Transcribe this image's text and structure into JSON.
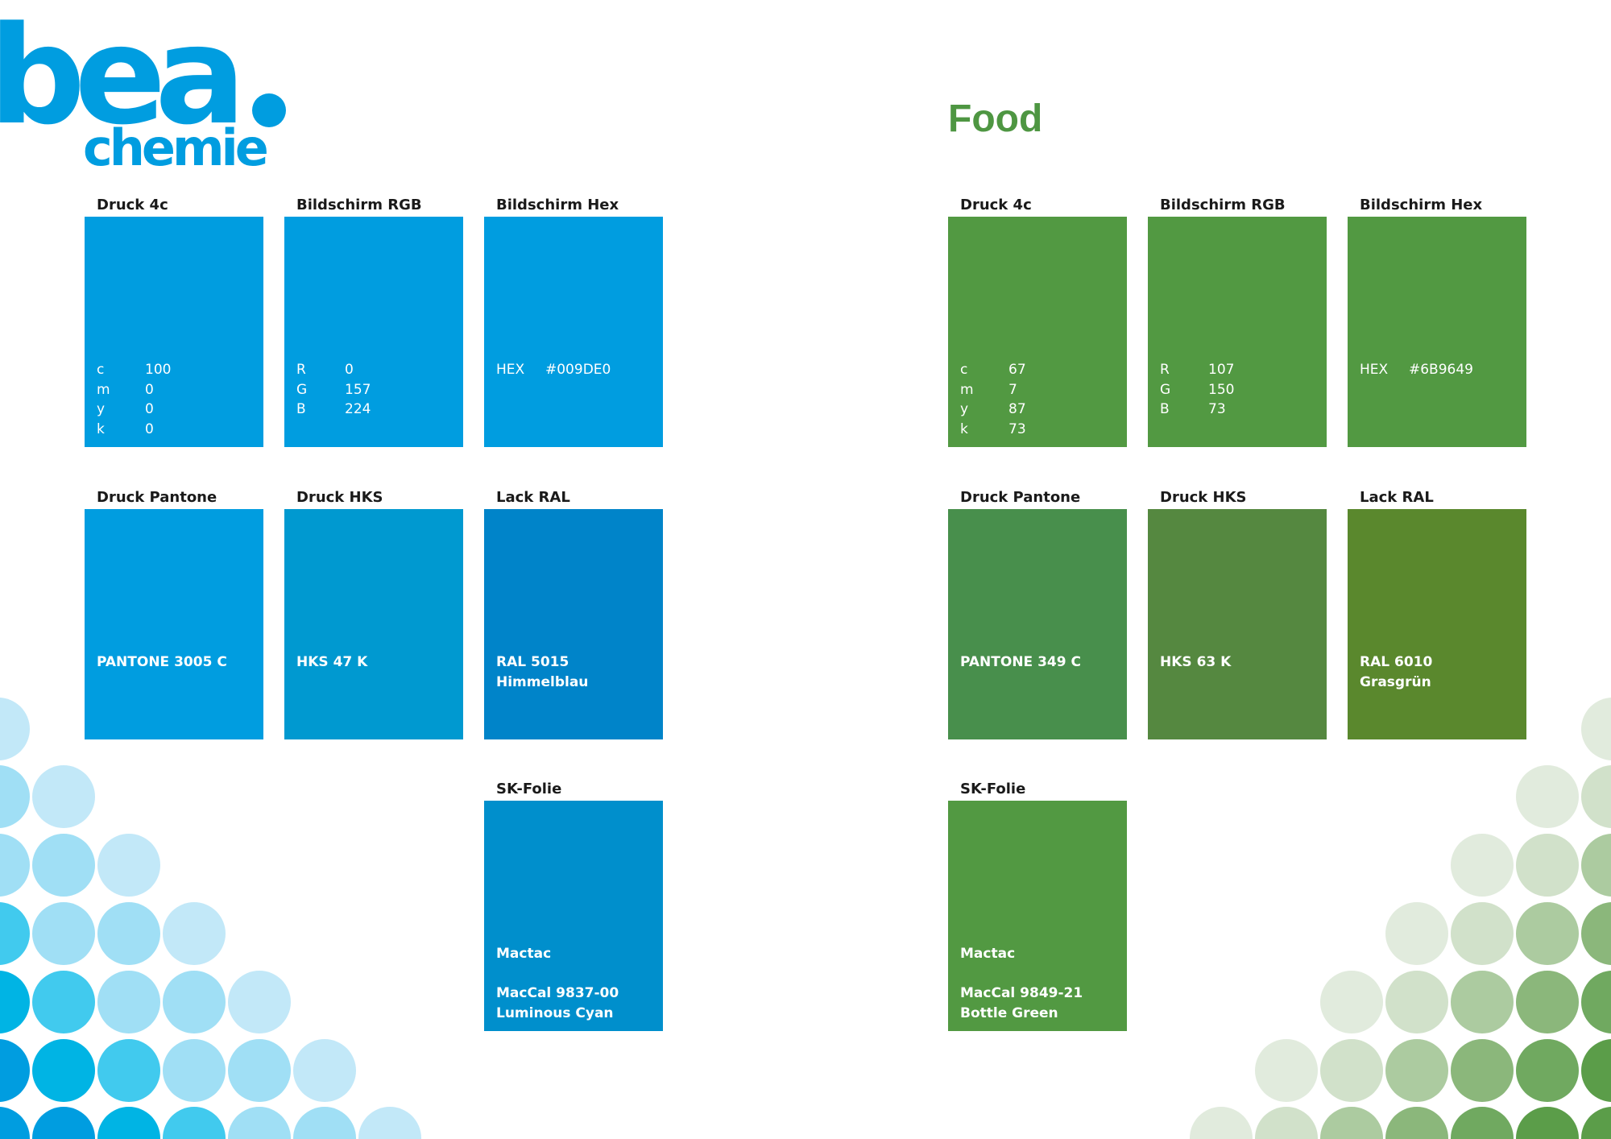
{
  "logo": {
    "text_line1": "bea",
    "text_line2": "chemie",
    "color": "#009DE0"
  },
  "colors": {
    "blue_dots": [
      "#C2E8F8",
      "#A0DFF5",
      "#41CAEE",
      "#00B4E4",
      "#009DE0"
    ],
    "green_dots": [
      "#E1EBDD",
      "#D1E1CA",
      "#ACCBA0",
      "#8BB77B",
      "#70A960",
      "#5B9D49"
    ]
  },
  "right_section": {
    "title": "Food",
    "title_color": "#4E9642"
  },
  "panels": [
    {
      "name": "blue",
      "swatches": [
        {
          "label": "Druck 4c",
          "color": "#009DE0",
          "kind": "kv",
          "rows": [
            {
              "k": "c",
              "v": "100"
            },
            {
              "k": "m",
              "v": "0"
            },
            {
              "k": "y",
              "v": "0"
            },
            {
              "k": "k",
              "v": "0"
            }
          ]
        },
        {
          "label": "Bildschirm RGB",
          "color": "#009DE0",
          "kind": "kv",
          "rows": [
            {
              "k": "R",
              "v": "0"
            },
            {
              "k": "G",
              "v": "157"
            },
            {
              "k": "B",
              "v": "224"
            }
          ]
        },
        {
          "label": "Bildschirm Hex",
          "color": "#009DE0",
          "kind": "hex",
          "rows": [
            {
              "k": "HEX",
              "v": "#009DE0"
            }
          ]
        },
        {
          "label": "Druck Pantone",
          "color": "#009DE0",
          "kind": "text",
          "lines": [
            "PANTONE 3005 C"
          ]
        },
        {
          "label": "Druck HKS",
          "color": "#0099D0",
          "kind": "text",
          "lines": [
            "HKS 47 K"
          ]
        },
        {
          "label": "Lack RAL",
          "color": "#0084C9",
          "kind": "text",
          "lines": [
            "RAL  5015",
            "Himmelblau"
          ]
        },
        {
          "label": "SK-Folie",
          "color": "#008FCC",
          "kind": "text",
          "lines": [
            "Mactac",
            "",
            "MacCal 9837-00",
            "Luminous Cyan"
          ]
        }
      ]
    },
    {
      "name": "green",
      "swatches": [
        {
          "label": "Druck 4c",
          "color": "#529942",
          "kind": "kv",
          "rows": [
            {
              "k": "c",
              "v": "67"
            },
            {
              "k": "m",
              "v": "7"
            },
            {
              "k": "y",
              "v": "87"
            },
            {
              "k": "k",
              "v": "73"
            }
          ]
        },
        {
          "label": "Bildschirm RGB",
          "color": "#529942",
          "kind": "kv",
          "rows": [
            {
              "k": "R",
              "v": "107"
            },
            {
              "k": "G",
              "v": "150"
            },
            {
              "k": "B",
              "v": "73"
            }
          ]
        },
        {
          "label": "Bildschirm Hex",
          "color": "#529942",
          "kind": "hex",
          "rows": [
            {
              "k": "HEX",
              "v": "#6B9649"
            }
          ]
        },
        {
          "label": "Druck Pantone",
          "color": "#488F4C",
          "kind": "text",
          "lines": [
            "PANTONE 349 C"
          ]
        },
        {
          "label": "Druck HKS",
          "color": "#558840",
          "kind": "text",
          "lines": [
            "HKS 63 K"
          ]
        },
        {
          "label": "Lack RAL",
          "color": "#5A882D",
          "kind": "text",
          "lines": [
            "RAL 6010",
            "Grasgrün"
          ]
        },
        {
          "label": "SK-Folie",
          "color": "#529942",
          "kind": "text",
          "lines": [
            "Mactac",
            "",
            "MacCal 9849-21",
            "Bottle Green"
          ]
        }
      ]
    }
  ]
}
